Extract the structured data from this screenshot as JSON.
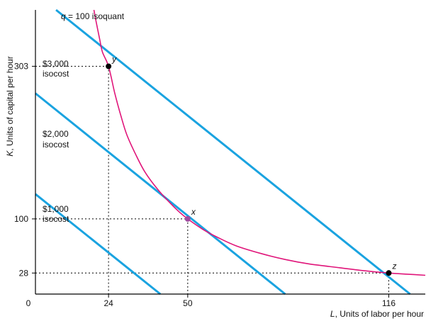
{
  "chart_data": {
    "type": "line",
    "xlabel_var": "L",
    "xlabel_rest": ", Units of labor per hour",
    "ylabel_var": "K",
    "ylabel_rest": ", Units of capital per hour",
    "xlim": [
      0,
      128
    ],
    "ylim": [
      0,
      378
    ],
    "x_ticks": [
      0,
      24,
      50,
      116
    ],
    "y_ticks": [
      28,
      100,
      303
    ],
    "colors": {
      "isocost": "#1aa3e0",
      "isoquant": "#e0157a",
      "point": "#000000",
      "point_x": "#a04aa0",
      "axes": "#000000"
    },
    "isoquant": {
      "label_var": "q",
      "label_rest": " = 100 isoquant",
      "points": [
        [
          19.2,
          378
        ],
        [
          20,
          361
        ],
        [
          21,
          341
        ],
        [
          22,
          322
        ],
        [
          24,
          303
        ],
        [
          26,
          268
        ],
        [
          28,
          238
        ],
        [
          30,
          212
        ],
        [
          33,
          185
        ],
        [
          36,
          162
        ],
        [
          40,
          140
        ],
        [
          44,
          122
        ],
        [
          47,
          110
        ],
        [
          50,
          100
        ],
        [
          55,
          86
        ],
        [
          60,
          75
        ],
        [
          66,
          64
        ],
        [
          74,
          54
        ],
        [
          82,
          46
        ],
        [
          90,
          40
        ],
        [
          100,
          35
        ],
        [
          108,
          31
        ],
        [
          116,
          28
        ],
        [
          122,
          26.5
        ],
        [
          128,
          25
        ]
      ]
    },
    "isocosts": [
      {
        "label": [
          "$3,000",
          "isocost"
        ],
        "x": [
          0,
          123
        ],
        "y": [
          400,
          0
        ]
      },
      {
        "label": [
          "$2,000",
          "isocost"
        ],
        "x": [
          0,
          82
        ],
        "y": [
          267,
          0
        ]
      },
      {
        "label": [
          "$1,000",
          "isocost"
        ],
        "x": [
          0,
          41
        ],
        "y": [
          133,
          0
        ]
      }
    ],
    "points": [
      {
        "name": "y",
        "x": 24,
        "y": 303
      },
      {
        "name": "x",
        "x": 50,
        "y": 100
      },
      {
        "name": "z",
        "x": 116,
        "y": 28
      }
    ]
  }
}
